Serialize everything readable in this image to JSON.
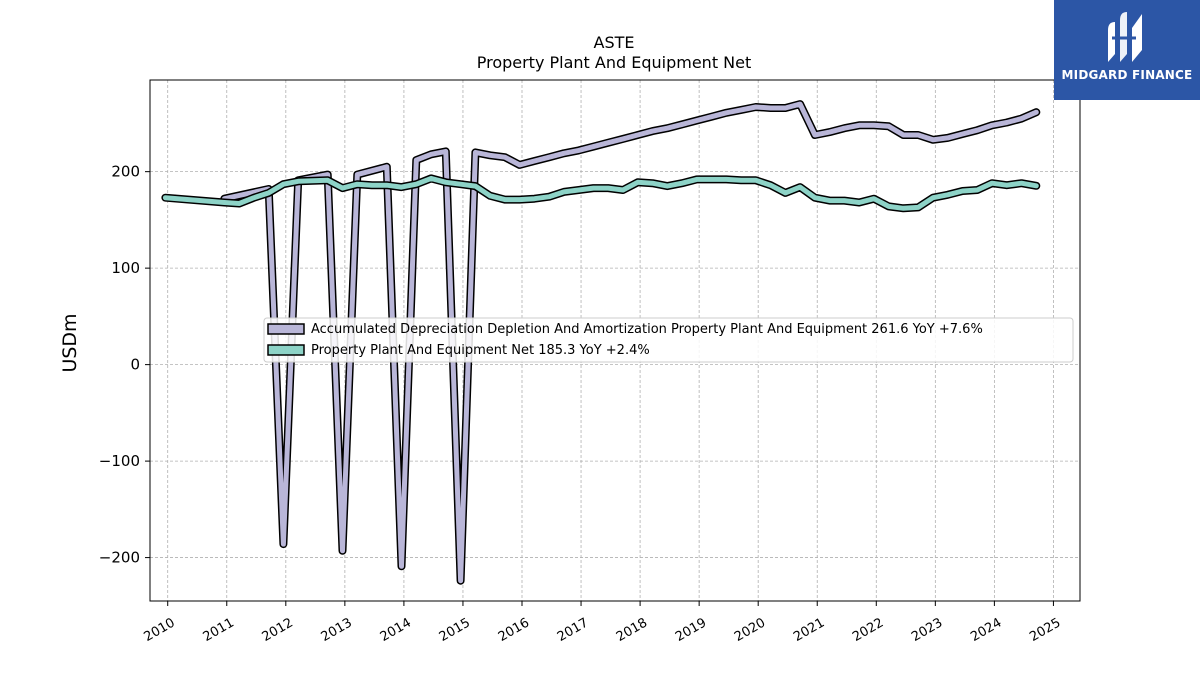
{
  "logo": {
    "text": "MIDGARD FINANCE"
  },
  "chart_data": {
    "type": "line",
    "title": "ASTE",
    "subtitle": "Property Plant And Equipment Net",
    "ylabel": "USDm",
    "xlabel": "",
    "ylim": [
      -245,
      295
    ],
    "xlim": [
      2009.7,
      2025.45
    ],
    "yticks": [
      -200,
      -100,
      0,
      100,
      200
    ],
    "ytick_labels": [
      "−200",
      "−100",
      "0",
      "100",
      "200"
    ],
    "xticks": [
      2010,
      2011,
      2012,
      2013,
      2014,
      2015,
      2016,
      2017,
      2018,
      2019,
      2020,
      2021,
      2022,
      2023,
      2024,
      2025
    ],
    "grid": true,
    "legend_position": "center",
    "series": [
      {
        "name": "Accumulated Depreciation Depletion And Amortization Property Plant And Equipment",
        "legend_label": "Accumulated Depreciation Depletion And Amortization Property Plant And Equipment  261.6 YoY +7.6%",
        "color": "#b9b6d8",
        "points": [
          [
            2010.96,
            172
          ],
          [
            2011.71,
            182
          ],
          [
            2011.96,
            -186
          ],
          [
            2012.21,
            191
          ],
          [
            2012.71,
            197
          ],
          [
            2012.96,
            -193
          ],
          [
            2013.21,
            197
          ],
          [
            2013.71,
            205
          ],
          [
            2013.96,
            -209
          ],
          [
            2014.21,
            212
          ],
          [
            2014.46,
            218
          ],
          [
            2014.71,
            221
          ],
          [
            2014.96,
            -224
          ],
          [
            2015.21,
            220
          ],
          [
            2015.46,
            217
          ],
          [
            2015.71,
            215
          ],
          [
            2015.96,
            207
          ],
          [
            2016.21,
            211
          ],
          [
            2016.46,
            215
          ],
          [
            2016.71,
            219
          ],
          [
            2016.96,
            222
          ],
          [
            2017.21,
            226
          ],
          [
            2017.46,
            230
          ],
          [
            2017.71,
            234
          ],
          [
            2017.96,
            238
          ],
          [
            2018.21,
            242
          ],
          [
            2018.46,
            245
          ],
          [
            2018.71,
            249
          ],
          [
            2018.96,
            253
          ],
          [
            2019.21,
            257
          ],
          [
            2019.46,
            261
          ],
          [
            2019.71,
            264
          ],
          [
            2019.96,
            267
          ],
          [
            2020.21,
            266
          ],
          [
            2020.46,
            266
          ],
          [
            2020.71,
            270
          ],
          [
            2020.96,
            238
          ],
          [
            2021.21,
            241
          ],
          [
            2021.46,
            245
          ],
          [
            2021.71,
            248
          ],
          [
            2021.96,
            248
          ],
          [
            2022.21,
            247
          ],
          [
            2022.46,
            238
          ],
          [
            2022.71,
            238
          ],
          [
            2022.96,
            233
          ],
          [
            2023.21,
            235
          ],
          [
            2023.46,
            239
          ],
          [
            2023.71,
            243
          ],
          [
            2023.96,
            248
          ],
          [
            2024.21,
            251
          ],
          [
            2024.46,
            255
          ],
          [
            2024.71,
            261.6
          ]
        ]
      },
      {
        "name": "Property Plant And Equipment Net",
        "legend_label": "Property Plant And Equipment Net  185.3 YoY +2.4%",
        "color": "#8dd3c7",
        "points": [
          [
            2009.96,
            173
          ],
          [
            2010.96,
            168
          ],
          [
            2011.21,
            167
          ],
          [
            2011.46,
            173
          ],
          [
            2011.71,
            178
          ],
          [
            2011.96,
            187
          ],
          [
            2012.21,
            190
          ],
          [
            2012.71,
            191
          ],
          [
            2012.96,
            183
          ],
          [
            2013.21,
            187
          ],
          [
            2013.46,
            186
          ],
          [
            2013.71,
            186
          ],
          [
            2013.96,
            184
          ],
          [
            2014.21,
            187
          ],
          [
            2014.46,
            193
          ],
          [
            2014.71,
            189
          ],
          [
            2014.96,
            187
          ],
          [
            2015.21,
            185
          ],
          [
            2015.46,
            175
          ],
          [
            2015.71,
            171
          ],
          [
            2015.96,
            171
          ],
          [
            2016.21,
            172
          ],
          [
            2016.46,
            174
          ],
          [
            2016.71,
            179
          ],
          [
            2016.96,
            181
          ],
          [
            2017.21,
            183
          ],
          [
            2017.46,
            183
          ],
          [
            2017.71,
            181
          ],
          [
            2017.96,
            189
          ],
          [
            2018.21,
            188
          ],
          [
            2018.46,
            185
          ],
          [
            2018.71,
            188
          ],
          [
            2018.96,
            192
          ],
          [
            2019.46,
            192
          ],
          [
            2019.71,
            191
          ],
          [
            2019.96,
            191
          ],
          [
            2020.21,
            186
          ],
          [
            2020.46,
            178
          ],
          [
            2020.71,
            184
          ],
          [
            2020.96,
            173
          ],
          [
            2021.21,
            170
          ],
          [
            2021.46,
            170
          ],
          [
            2021.71,
            168
          ],
          [
            2021.96,
            172
          ],
          [
            2022.21,
            164
          ],
          [
            2022.46,
            162
          ],
          [
            2022.71,
            163
          ],
          [
            2022.96,
            173
          ],
          [
            2023.21,
            176
          ],
          [
            2023.46,
            180
          ],
          [
            2023.71,
            181
          ],
          [
            2023.96,
            188
          ],
          [
            2024.21,
            186
          ],
          [
            2024.46,
            188
          ],
          [
            2024.71,
            185.3
          ]
        ]
      }
    ]
  }
}
